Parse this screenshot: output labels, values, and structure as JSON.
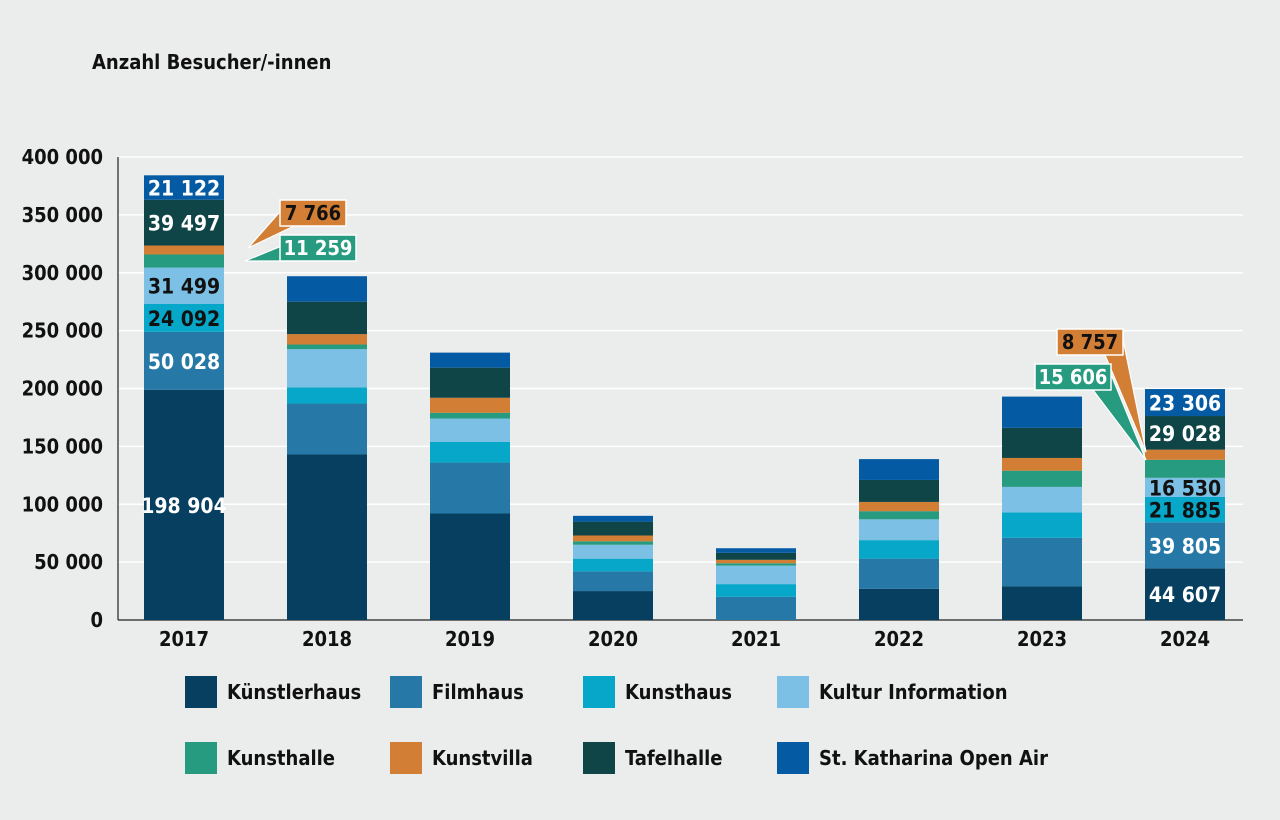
{
  "chart_data": {
    "type": "bar",
    "stacked": true,
    "ylabel": "Anzahl Besucher/-innen",
    "categories": [
      "2017",
      "2018",
      "2019",
      "2020",
      "2021",
      "2022",
      "2023",
      "2024"
    ],
    "ylim": [
      0,
      400000
    ],
    "yticks": [
      0,
      50000,
      100000,
      150000,
      200000,
      250000,
      300000,
      350000,
      400000
    ],
    "ytick_labels": [
      "0",
      "50 000",
      "100 000",
      "150 000",
      "200 000",
      "250 000",
      "300 000",
      "350 000",
      "400 000"
    ],
    "grid": "horizontal",
    "legend_position": "bottom",
    "series": [
      {
        "name": "Künstlerhaus",
        "color": "#063f5f",
        "values": [
          198904,
          143000,
          92000,
          25000,
          0,
          27000,
          29000,
          44607
        ]
      },
      {
        "name": "Filmhaus",
        "color": "#2679a7",
        "values": [
          50028,
          44000,
          44000,
          17000,
          20000,
          26000,
          42000,
          39805
        ]
      },
      {
        "name": "Kunsthaus",
        "color": "#07a7c9",
        "values": [
          24092,
          14000,
          18000,
          11000,
          11000,
          16000,
          22000,
          21885
        ]
      },
      {
        "name": "Kultur Information",
        "color": "#7cc0e5",
        "values": [
          31499,
          33000,
          20000,
          12000,
          16000,
          18000,
          22000,
          16530
        ]
      },
      {
        "name": "Kunsthalle",
        "color": "#279b7f",
        "values": [
          11259,
          4000,
          5000,
          3000,
          2000,
          7000,
          14000,
          15606
        ]
      },
      {
        "name": "Kunstvilla",
        "color": "#d27e34",
        "values": [
          7766,
          9000,
          13000,
          5000,
          3000,
          8000,
          11000,
          8757
        ]
      },
      {
        "name": "Tafelhalle",
        "color": "#0f4546",
        "values": [
          39497,
          28000,
          26000,
          12000,
          6000,
          19000,
          26000,
          29028
        ]
      },
      {
        "name": "St. Katharina Open Air",
        "color": "#045ba4",
        "values": [
          21122,
          22000,
          13000,
          5000,
          4000,
          18000,
          27000,
          23306
        ]
      }
    ],
    "data_labels": [
      {
        "category": "2017",
        "series": "Künstlerhaus",
        "text": "198 904"
      },
      {
        "category": "2017",
        "series": "Filmhaus",
        "text": "50 028"
      },
      {
        "category": "2017",
        "series": "Kunsthaus",
        "text": "24 092"
      },
      {
        "category": "2017",
        "series": "Kultur Information",
        "text": "31 499"
      },
      {
        "category": "2017",
        "series": "Tafelhalle",
        "text": "39 497"
      },
      {
        "category": "2017",
        "series": "St. Katharina Open Air",
        "text": "21 122"
      },
      {
        "category": "2017",
        "series": "Kunstvilla",
        "text": "7 766",
        "callout": true
      },
      {
        "category": "2017",
        "series": "Kunsthalle",
        "text": "11 259",
        "callout": true
      },
      {
        "category": "2024",
        "series": "Künstlerhaus",
        "text": "44 607"
      },
      {
        "category": "2024",
        "series": "Filmhaus",
        "text": "39 805"
      },
      {
        "category": "2024",
        "series": "Kunsthaus",
        "text": "21 885"
      },
      {
        "category": "2024",
        "series": "Kultur Information",
        "text": "16 530"
      },
      {
        "category": "2024",
        "series": "Tafelhalle",
        "text": "29 028"
      },
      {
        "category": "2024",
        "series": "St. Katharina Open Air",
        "text": "23 306"
      },
      {
        "category": "2024",
        "series": "Kunstvilla",
        "text": "8 757",
        "callout": true
      },
      {
        "category": "2024",
        "series": "Kunsthalle",
        "text": "15 606",
        "callout": true
      }
    ]
  }
}
